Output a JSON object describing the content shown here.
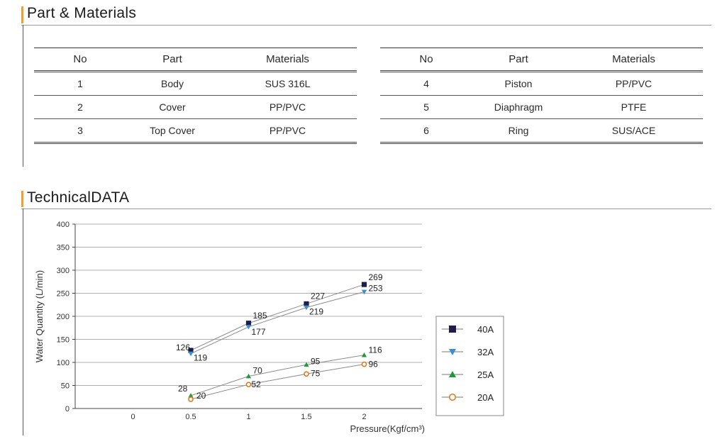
{
  "parts_section": {
    "title": "Part & Materials",
    "headers": [
      "No",
      "Part",
      "Materials"
    ],
    "left_rows": [
      {
        "no": "1",
        "part": "Body",
        "material": "SUS 316L"
      },
      {
        "no": "2",
        "part": "Cover",
        "material": "PP/PVC"
      },
      {
        "no": "3",
        "part": "Top Cover",
        "material": "PP/PVC"
      }
    ],
    "right_rows": [
      {
        "no": "4",
        "part": "Piston",
        "material": "PP/PVC"
      },
      {
        "no": "5",
        "part": "Diaphragm",
        "material": "PTFE"
      },
      {
        "no": "6",
        "part": "Ring",
        "material": "SUS/ACE"
      }
    ]
  },
  "tech_section": {
    "title": "TechnicalDATA"
  },
  "chart_data": {
    "type": "line",
    "x": [
      0.5,
      1,
      1.5,
      2
    ],
    "x_tick_labels": [
      "0",
      "0.5",
      "1",
      "1.5",
      "2"
    ],
    "y_ticks": [
      0,
      50,
      100,
      150,
      200,
      250,
      300,
      350,
      400
    ],
    "ylim": [
      0,
      400
    ],
    "xlabel": "Pressure(Kgf/cm³)",
    "ylabel": "Water Quantity (L/min)",
    "grid": true,
    "legend_position": "right",
    "series": [
      {
        "name": "40A",
        "values": [
          126,
          185,
          227,
          269
        ],
        "marker": "square",
        "color": "#1e1e4e"
      },
      {
        "name": "32A",
        "values": [
          119,
          177,
          219,
          253
        ],
        "marker": "triangle-down",
        "color": "#3a8fd0"
      },
      {
        "name": "25A",
        "values": [
          28,
          70,
          95,
          116
        ],
        "marker": "triangle-up",
        "color": "#1f9a3a"
      },
      {
        "name": "20A",
        "values": [
          20,
          52,
          75,
          96
        ],
        "marker": "circle-open",
        "color": "#e07a20"
      }
    ]
  }
}
